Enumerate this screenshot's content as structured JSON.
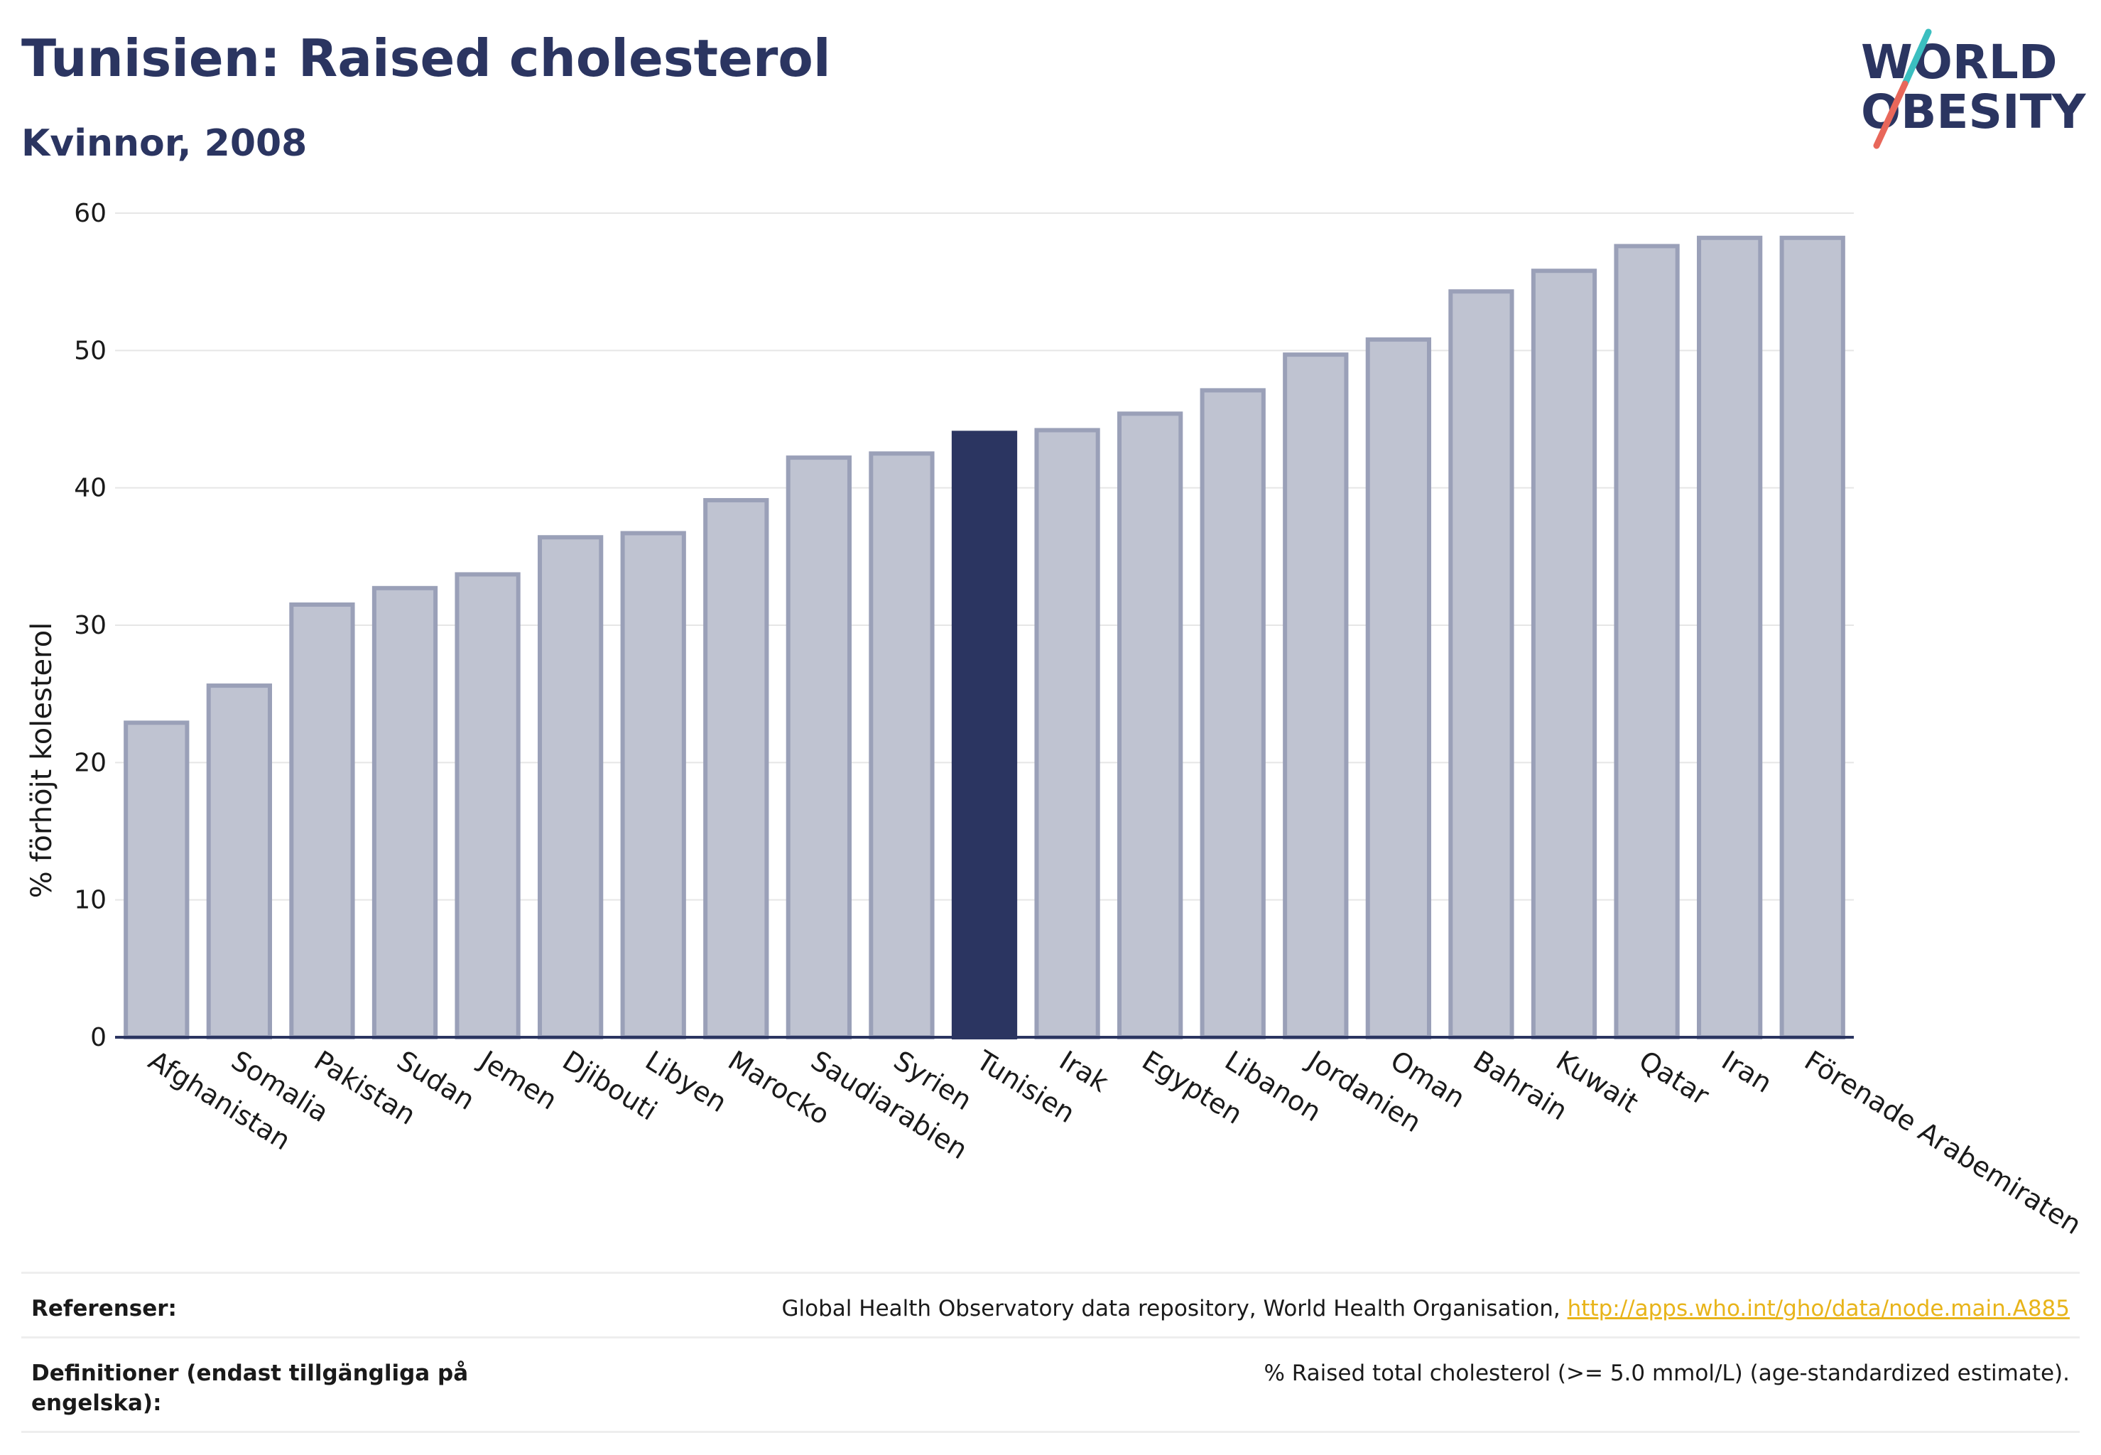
{
  "header": {
    "title": "Tunisien: Raised cholesterol",
    "subtitle": "Kvinnor, 2008"
  },
  "logo": {
    "line1": "WORLD",
    "line2": "OBESITY",
    "accent_teal": "#3bbfc0",
    "accent_coral": "#e8675a"
  },
  "colors": {
    "bar": "#bfc3d1",
    "bar_stroke": "#9aa0b8",
    "highlight": "#2b3561",
    "grid": "#e6e6e6",
    "axis": "#2b3561"
  },
  "chart_data": {
    "type": "bar",
    "title": "Tunisien: Raised cholesterol",
    "subtitle": "Kvinnor, 2008",
    "xlabel": "",
    "ylabel": "% förhöjt kolesterol",
    "ylim": [
      0,
      60
    ],
    "yticks": [
      0,
      10,
      20,
      30,
      40,
      50,
      60
    ],
    "grid": true,
    "highlight_category": "Tunisien",
    "categories": [
      "Afghanistan",
      "Somalia",
      "Pakistan",
      "Sudan",
      "Jemen",
      "Djibouti",
      "Libyen",
      "Marocko",
      "Saudiarabien",
      "Syrien",
      "Tunisien",
      "Irak",
      "Egypten",
      "Libanon",
      "Jordanien",
      "Oman",
      "Bahrain",
      "Kuwait",
      "Qatar",
      "Iran",
      "Förenade Arabemiraten"
    ],
    "values": [
      22.9,
      25.6,
      31.5,
      32.7,
      33.7,
      36.4,
      36.7,
      39.1,
      42.2,
      42.5,
      44.0,
      44.2,
      45.4,
      47.1,
      49.7,
      50.8,
      54.3,
      55.8,
      57.6,
      58.2,
      58.2
    ]
  },
  "footer": {
    "references_label": "Referenser:",
    "references_text": "Global Health Observatory data repository, World Health Organisation, ",
    "references_link": "http://apps.who.int/gho/data/node.main.A885",
    "definitions_label": "Definitioner (endast tillgängliga på engelska):",
    "definitions_text": "% Raised total cholesterol (>= 5.0 mmol/L) (age-standardized estimate)."
  }
}
